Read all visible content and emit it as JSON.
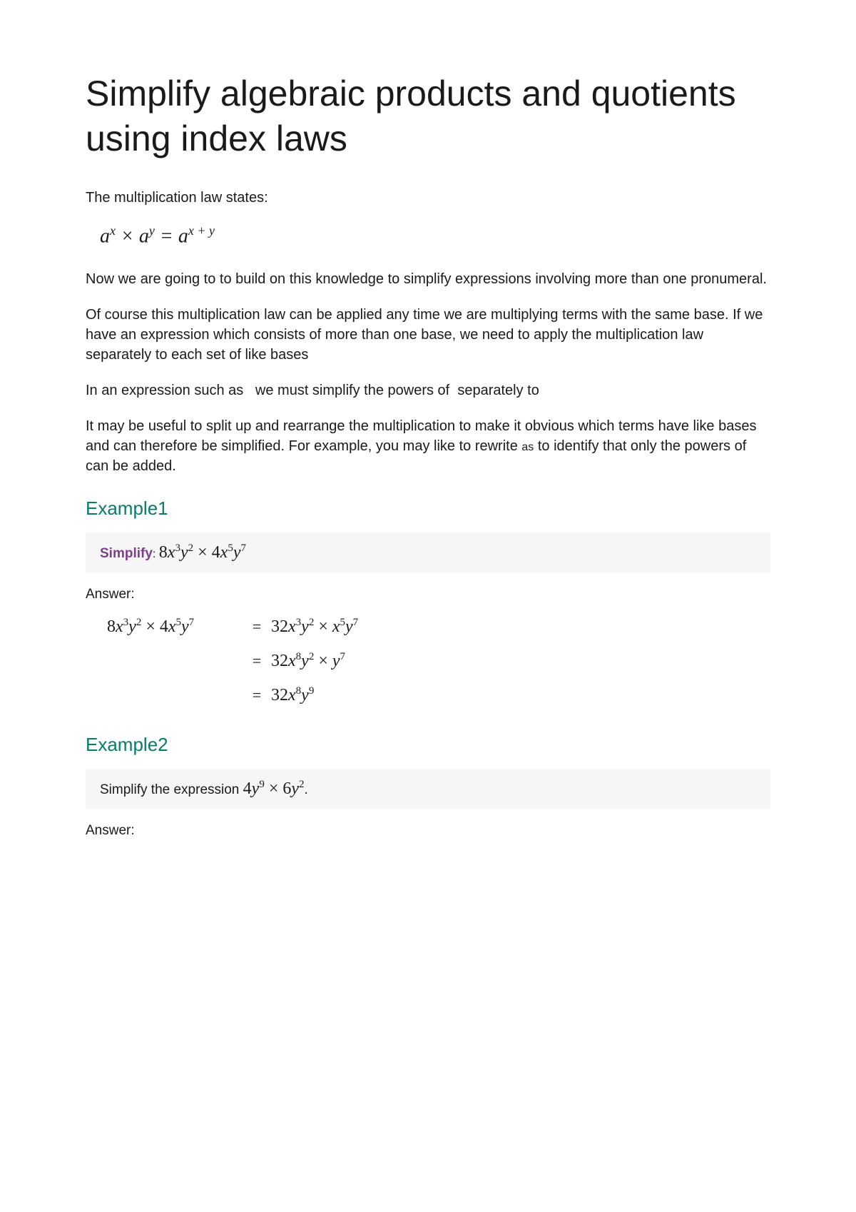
{
  "title": "Simplify algebraic products and quotients using index laws",
  "intro_line": "The multiplication law states:",
  "formula_law_html": "<span class='var'>a</span><sup><span class='var'>x</span></sup> × <span class='var'>a</span><sup><span class='var'>y</span></sup> = <span class='var'>a</span><sup><span class='var'>x</span> + <span class='var'>y</span></sup>",
  "para1": "Now we are going to to build on this knowledge to simplify expressions involving more than one pronumeral.",
  "para2": "Of course this multiplication law can be applied any time we are multiplying terms with the same base. If we have an expression which consists of more than one base, we need to apply the multiplication law separately to each set of like bases",
  "para3": "In an expression such as   we must simplify the powers of  separately to",
  "para4_a": "It may be useful to split up and rearrange the multiplication to make it obvious which terms have like bases and can therefore be simplified. For example, you may like to rewrite ",
  "para4_as": "as",
  "para4_b": " to identify that only the powers of   can be added.",
  "example1_heading": "Example1",
  "example1_label": "Simplify",
  "example1_expr_html": "8<span class='var'>x</span><sup>3</sup><span class='var'>y</span><sup>2</sup> × 4<span class='var'>x</span><sup>5</sup><span class='var'>y</span><sup>7</sup>",
  "answer_label": "Answer:",
  "working": [
    {
      "left_html": "8<span class='var'>x</span><sup>3</sup><span class='var'>y</span><sup>2</sup> × 4<span class='var'>x</span><sup>5</sup><span class='var'>y</span><sup>7</sup>",
      "right_html": "32<span class='var'>x</span><sup>3</sup><span class='var'>y</span><sup>2</sup> × <span class='var'>x</span><sup>5</sup><span class='var'>y</span><sup>7</sup>"
    },
    {
      "left_html": "",
      "right_html": "32<span class='var'>x</span><sup>8</sup><span class='var'>y</span><sup>2</sup> × <span class='var'>y</span><sup>7</sup>"
    },
    {
      "left_html": "",
      "right_html": "32<span class='var'>x</span><sup>8</sup><span class='var'>y</span><sup>9</sup>"
    }
  ],
  "example2_heading": "Example2",
  "example2_text": "Simplify the expression ",
  "example2_expr_html": "4<span class='var'>y</span><sup>9</sup> × 6<span class='var'>y</span><sup>2</sup>",
  "example2_period": ".",
  "colors": {
    "heading_teal": "#0a7a6a",
    "simplify_purple": "#7a3f8a",
    "text": "#1a1a1a",
    "box_bg": "#f6f6f7",
    "page_bg": "#ffffff"
  },
  "typography": {
    "title_fontsize": 50,
    "body_fontsize": 20,
    "example_heading_fontsize": 26,
    "formula_fontsize": 28,
    "math_inline_fontsize": 24
  }
}
